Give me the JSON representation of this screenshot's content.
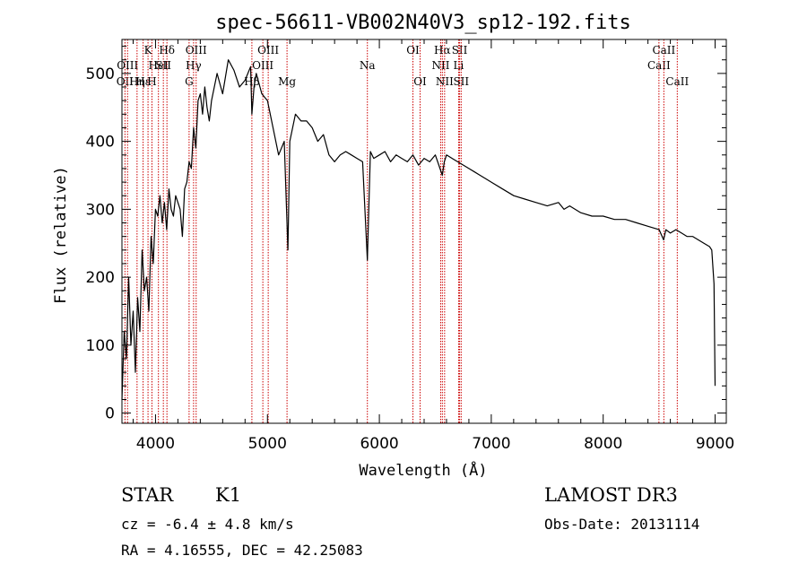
{
  "chart_data": {
    "type": "line",
    "title": "spec-56611-VB002N40V3_sp12-192.fits",
    "xlabel": "Wavelength (Å)",
    "ylabel": "Flux (relative)",
    "xlim": [
      3700,
      9100
    ],
    "ylim": [
      -15,
      550
    ],
    "xticks": [
      4000,
      5000,
      6000,
      7000,
      8000,
      9000
    ],
    "yticks": [
      0,
      100,
      200,
      300,
      400,
      500
    ],
    "series": [
      {
        "name": "flux",
        "x": [
          3700,
          3720,
          3740,
          3760,
          3780,
          3800,
          3820,
          3840,
          3860,
          3880,
          3900,
          3920,
          3940,
          3960,
          3980,
          4000,
          4020,
          4040,
          4060,
          4080,
          4100,
          4120,
          4140,
          4160,
          4180,
          4200,
          4220,
          4240,
          4260,
          4280,
          4300,
          4320,
          4340,
          4360,
          4380,
          4400,
          4420,
          4440,
          4460,
          4480,
          4500,
          4550,
          4600,
          4650,
          4700,
          4750,
          4800,
          4850,
          4861,
          4880,
          4900,
          4950,
          5000,
          5050,
          5100,
          5150,
          5183,
          5200,
          5250,
          5300,
          5350,
          5400,
          5450,
          5500,
          5550,
          5600,
          5650,
          5700,
          5750,
          5800,
          5850,
          5893,
          5920,
          5950,
          6000,
          6050,
          6100,
          6150,
          6200,
          6250,
          6300,
          6350,
          6400,
          6450,
          6500,
          6563,
          6580,
          6600,
          6650,
          6700,
          6750,
          6800,
          6850,
          6900,
          6950,
          7000,
          7100,
          7200,
          7300,
          7400,
          7500,
          7600,
          7650,
          7700,
          7800,
          7900,
          8000,
          8100,
          8200,
          8300,
          8400,
          8500,
          8540,
          8560,
          8600,
          8650,
          8700,
          8750,
          8800,
          8850,
          8900,
          8950,
          8970,
          8990,
          9000
        ],
        "y": [
          20,
          120,
          80,
          200,
          100,
          150,
          60,
          170,
          120,
          240,
          180,
          200,
          150,
          260,
          220,
          300,
          290,
          320,
          280,
          310,
          270,
          330,
          300,
          290,
          320,
          310,
          300,
          260,
          330,
          340,
          370,
          360,
          420,
          390,
          460,
          470,
          440,
          480,
          450,
          430,
          460,
          500,
          470,
          520,
          505,
          480,
          490,
          510,
          440,
          480,
          500,
          470,
          460,
          420,
          380,
          400,
          240,
          400,
          440,
          430,
          430,
          420,
          400,
          410,
          380,
          370,
          380,
          385,
          380,
          375,
          370,
          225,
          385,
          375,
          380,
          385,
          370,
          380,
          375,
          370,
          380,
          365,
          375,
          370,
          380,
          350,
          370,
          380,
          375,
          370,
          365,
          360,
          355,
          350,
          345,
          340,
          330,
          320,
          315,
          310,
          305,
          310,
          300,
          305,
          295,
          290,
          290,
          285,
          285,
          280,
          275,
          270,
          255,
          270,
          265,
          270,
          265,
          260,
          260,
          255,
          250,
          245,
          240,
          190,
          40
        ]
      }
    ],
    "lines": [
      {
        "wave": 3727,
        "label": "OII",
        "row": 2
      },
      {
        "wave": 3750,
        "label": "OIII",
        "row": 1
      },
      {
        "wave": 3835,
        "label": "Hη",
        "row": 2
      },
      {
        "wave": 3889,
        "label": "Hε",
        "row": 2
      },
      {
        "wave": 3933,
        "label": "K",
        "row": 0
      },
      {
        "wave": 3968,
        "label": "H",
        "row": 2
      },
      {
        "wave": 4026,
        "label": "HeI",
        "row": 1
      },
      {
        "wave": 4070,
        "label": "SII",
        "row": 1
      },
      {
        "wave": 4102,
        "label": "Hδ",
        "row": 0
      },
      {
        "wave": 4300,
        "label": "G",
        "row": 2
      },
      {
        "wave": 4340,
        "label": "Hγ",
        "row": 1
      },
      {
        "wave": 4363,
        "label": "OIII",
        "row": 0
      },
      {
        "wave": 4861,
        "label": "Hβ",
        "row": 2
      },
      {
        "wave": 4959,
        "label": "OIII",
        "row": 1
      },
      {
        "wave": 5007,
        "label": "OIII",
        "row": 0
      },
      {
        "wave": 5175,
        "label": "Mg",
        "row": 2
      },
      {
        "wave": 5893,
        "label": "Na",
        "row": 1
      },
      {
        "wave": 6300,
        "label": "OI",
        "row": 0
      },
      {
        "wave": 6364,
        "label": "OI",
        "row": 2
      },
      {
        "wave": 6548,
        "label": "NII",
        "row": 1
      },
      {
        "wave": 6563,
        "label": "Hα",
        "row": 0
      },
      {
        "wave": 6583,
        "label": "NII",
        "row": 2
      },
      {
        "wave": 6708,
        "label": "Li",
        "row": 1
      },
      {
        "wave": 6717,
        "label": "SII",
        "row": 0
      },
      {
        "wave": 6731,
        "label": "SII",
        "row": 2
      },
      {
        "wave": 8498,
        "label": "CaII",
        "row": 1
      },
      {
        "wave": 8542,
        "label": "CaII",
        "row": 0
      },
      {
        "wave": 8662,
        "label": "CaII",
        "row": 2
      }
    ]
  },
  "info": {
    "object_type": "STAR",
    "subclass": "K1",
    "release": "LAMOST DR3",
    "cz": "cz = -6.4 ± 4.8 km/s",
    "obs_date": "Obs-Date: 20131114",
    "coords": "RA =   4.16555, DEC =  42.25083"
  },
  "colors": {
    "spectrum": "#000000",
    "line_markers": "#cc0000",
    "axes": "#000000"
  }
}
